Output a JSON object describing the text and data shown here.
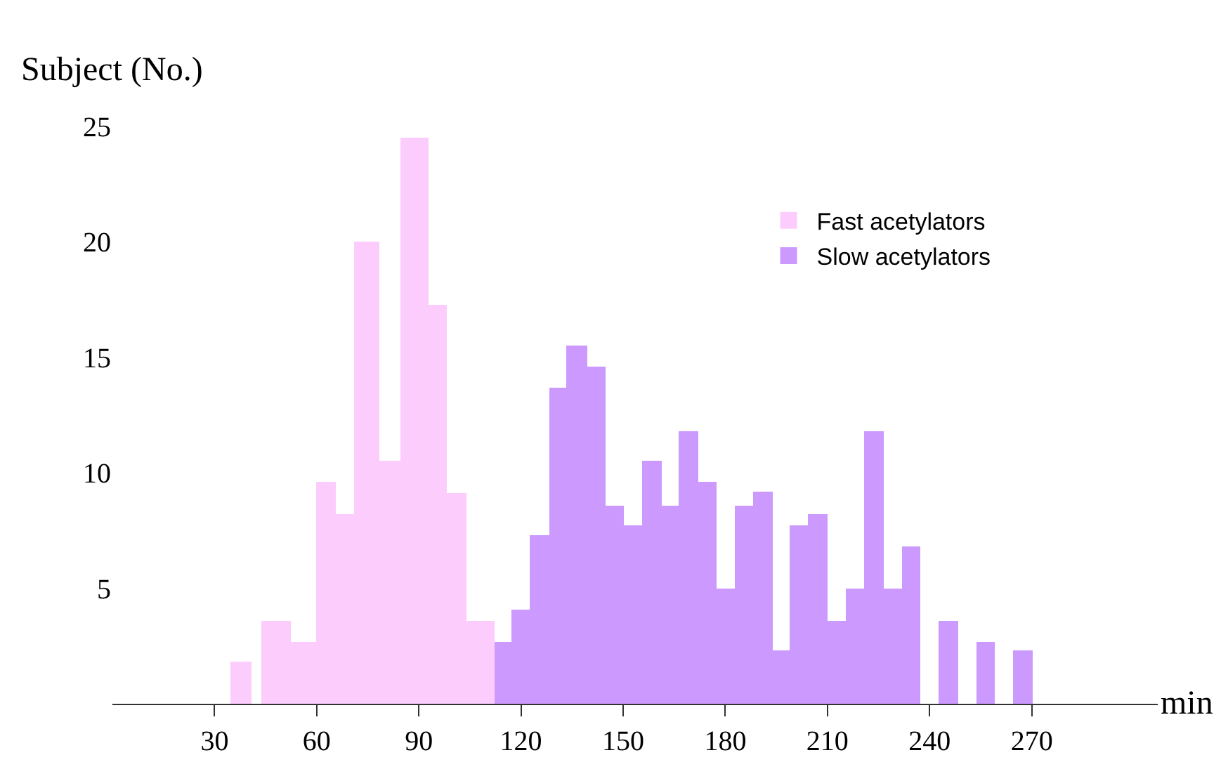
{
  "chart_data": {
    "type": "histogram",
    "xlabel": "min",
    "ylabel": "Subject (No.)",
    "xlim": [
      0,
      307
    ],
    "ylim": [
      0,
      25
    ],
    "xticks": [
      30,
      60,
      90,
      120,
      150,
      180,
      210,
      240,
      270
    ],
    "yticks": [
      5,
      10,
      15,
      20,
      25
    ],
    "legend": "top right",
    "bins": [
      34.7,
      41.0,
      43.7,
      52.2,
      59.9,
      65.7,
      70.9,
      78.6,
      84.4,
      93.0,
      98.4,
      103.8,
      112.1,
      117.1,
      122.7,
      128.2,
      133.4,
      139.5,
      145.0,
      150.4,
      155.5,
      161.2,
      166.3,
      172.0,
      177.4,
      182.9,
      188.3,
      194.0,
      199.0,
      204.4,
      210.1,
      215.3,
      220.7,
      226.4,
      231.9,
      237.4,
      242.8,
      248.4,
      253.6,
      259.3,
      264.5,
      270.2
    ],
    "series": [
      {
        "name": "Fast acetylators",
        "color": "#fccdfc",
        "values": [
          1.8,
          0,
          3.6,
          2.7,
          9.6,
          8.2,
          20,
          10.5,
          24.5,
          17.3,
          9.1,
          3.6,
          0,
          0,
          0,
          0,
          0,
          0,
          0,
          0,
          0,
          0,
          0,
          0,
          0,
          0,
          0,
          0,
          0,
          0,
          0,
          0,
          0,
          0,
          0,
          0,
          0,
          0,
          0,
          0,
          0
        ]
      },
      {
        "name": "Slow acetylators",
        "color": "#cc99ff",
        "values": [
          0,
          0,
          0,
          0,
          0,
          0,
          0,
          0,
          0,
          0,
          0,
          0,
          2.7,
          4.1,
          7.3,
          13.7,
          15.5,
          14.6,
          8.6,
          7.7,
          10.5,
          8.6,
          11.8,
          9.6,
          5.0,
          8.6,
          9.2,
          2.3,
          7.7,
          8.2,
          3.6,
          5.0,
          11.8,
          5.0,
          6.8,
          0,
          3.6,
          0,
          2.7,
          0,
          2.3
        ]
      }
    ]
  }
}
